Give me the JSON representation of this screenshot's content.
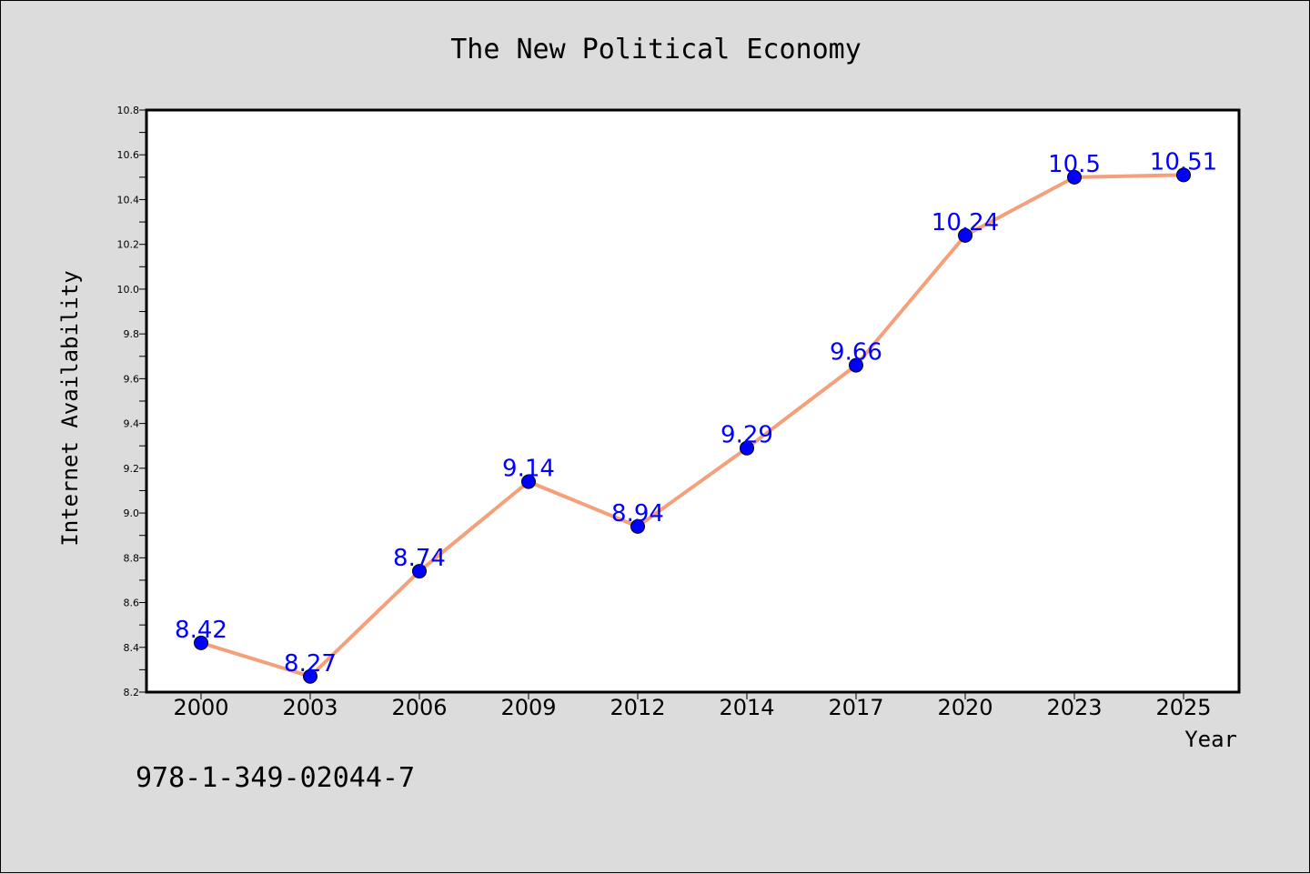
{
  "chart_data": {
    "type": "line",
    "title": "The New Political Economy",
    "xlabel": "Year",
    "ylabel": "Internet Availability",
    "categories": [
      "2000",
      "2003",
      "2006",
      "2009",
      "2012",
      "2014",
      "2017",
      "2020",
      "2023",
      "2025"
    ],
    "series": [
      {
        "values": [
          8.42,
          8.27,
          8.74,
          9.14,
          8.94,
          9.29,
          9.66,
          10.24,
          10.5,
          10.51
        ],
        "labels": [
          "8.42",
          "8.27",
          "8.74",
          "9.14",
          "8.94",
          "9.29",
          "9.66",
          "10.24",
          "10.5",
          "10.51"
        ],
        "line_color": "#f4a07a",
        "marker_color": "#0000ff"
      }
    ],
    "ylim": [
      8.2,
      10.8
    ],
    "yticks": [
      "8.2",
      "8.4",
      "8.6",
      "8.8",
      "9.0",
      "9.2",
      "9.4",
      "9.6",
      "9.8",
      "10.0",
      "10.2",
      "10.4",
      "10.6",
      "10.8"
    ],
    "grid": false,
    "legend": "none"
  },
  "footer": {
    "isbn": "978-1-349-02044-7"
  },
  "colors": {
    "background": "#dcdcdc",
    "plot_background": "#ffffff",
    "label_color": "#0000ff"
  }
}
